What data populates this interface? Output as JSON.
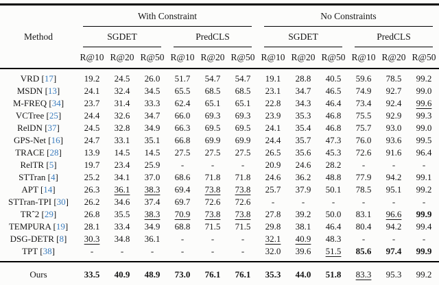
{
  "colors": {
    "citation_blue": "#3A7CBE",
    "text": "#151515",
    "background": "#FCFCFB",
    "rule": "#000000"
  },
  "table": {
    "method_header": "Method",
    "groups": [
      {
        "label": "With Constraint"
      },
      {
        "label": "No Constraints"
      }
    ],
    "subgroups": [
      "SGDET",
      "PredCLS",
      "SGDET",
      "PredCLS"
    ],
    "metric_headers": [
      "R@10",
      "R@20",
      "R@50",
      "R@10",
      "R@20",
      "R@50",
      "R@10",
      "R@20",
      "R@50",
      "R@10",
      "R@20",
      "R@50"
    ],
    "rows": [
      {
        "method": "VRD",
        "cite": "17",
        "values": [
          "19.2",
          "24.5",
          "26.0",
          "51.7",
          "54.7",
          "54.7",
          "19.1",
          "28.8",
          "40.5",
          "59.6",
          "78.5",
          "99.2"
        ],
        "styles": [
          "",
          "",
          "",
          "",
          "",
          "",
          "",
          "",
          "",
          "",
          "",
          ""
        ]
      },
      {
        "method": "MSDN",
        "cite": "13",
        "values": [
          "24.1",
          "32.4",
          "34.5",
          "65.5",
          "68.5",
          "68.5",
          "23.1",
          "34.7",
          "46.5",
          "74.9",
          "92.7",
          "99.0"
        ],
        "styles": [
          "",
          "",
          "",
          "",
          "",
          "",
          "",
          "",
          "",
          "",
          "",
          ""
        ]
      },
      {
        "method": "M-FREQ",
        "cite": "34",
        "values": [
          "23.7",
          "31.4",
          "33.3",
          "62.4",
          "65.1",
          "65.1",
          "22.8",
          "34.3",
          "46.4",
          "73.4",
          "92.4",
          "99.6"
        ],
        "styles": [
          "",
          "",
          "",
          "",
          "",
          "",
          "",
          "",
          "",
          "",
          "",
          "u"
        ]
      },
      {
        "method": "VCTree",
        "cite": "25",
        "values": [
          "24.4",
          "32.6",
          "34.7",
          "66.0",
          "69.3",
          "69.3",
          "23.9",
          "35.3",
          "46.8",
          "75.5",
          "92.9",
          "99.3"
        ],
        "styles": [
          "",
          "",
          "",
          "",
          "",
          "",
          "",
          "",
          "",
          "",
          "",
          ""
        ]
      },
      {
        "method": "RelDN",
        "cite": "37",
        "values": [
          "24.5",
          "32.8",
          "34.9",
          "66.3",
          "69.5",
          "69.5",
          "24.1",
          "35.4",
          "46.8",
          "75.7",
          "93.0",
          "99.0"
        ],
        "styles": [
          "",
          "",
          "",
          "",
          "",
          "",
          "",
          "",
          "",
          "",
          "",
          ""
        ]
      },
      {
        "method": "GPS-Net",
        "cite": "16",
        "values": [
          "24.7",
          "33.1",
          "35.1",
          "66.8",
          "69.9",
          "69.9",
          "24.4",
          "35.7",
          "47.3",
          "76.0",
          "93.6",
          "99.5"
        ],
        "styles": [
          "",
          "",
          "",
          "",
          "",
          "",
          "",
          "",
          "",
          "",
          "",
          ""
        ]
      },
      {
        "method": "TRACE",
        "cite": "28",
        "values": [
          "13.9",
          "14.5",
          "14.5",
          "27.5",
          "27.5",
          "27.5",
          "26.5",
          "35.6",
          "45.3",
          "72.6",
          "91.6",
          "96.4"
        ],
        "styles": [
          "",
          "",
          "",
          "",
          "",
          "",
          "",
          "",
          "",
          "",
          "",
          ""
        ]
      },
      {
        "method": "RelTR",
        "cite": "5",
        "values": [
          "19.7",
          "23.4",
          "25.9",
          "-",
          "-",
          "-",
          "20.9",
          "24.6",
          "28.2",
          "-",
          "-",
          "-"
        ],
        "styles": [
          "",
          "",
          "",
          "",
          "",
          "",
          "",
          "",
          "",
          "",
          "",
          ""
        ]
      },
      {
        "method": "STTran",
        "cite": "4",
        "values": [
          "25.2",
          "34.1",
          "37.0",
          "68.6",
          "71.8",
          "71.8",
          "24.6",
          "36.2",
          "48.8",
          "77.9",
          "94.2",
          "99.1"
        ],
        "styles": [
          "",
          "",
          "",
          "",
          "",
          "",
          "",
          "",
          "",
          "",
          "",
          ""
        ]
      },
      {
        "method": "APT",
        "cite": "14",
        "values": [
          "26.3",
          "36.1",
          "38.3",
          "69.4",
          "73.8",
          "73.8",
          "25.7",
          "37.9",
          "50.1",
          "78.5",
          "95.1",
          "99.2"
        ],
        "styles": [
          "",
          "u",
          "u",
          "",
          "u",
          "u",
          "",
          "",
          "",
          "",
          "",
          ""
        ]
      },
      {
        "method": "STTran-TPI",
        "cite": "30",
        "values": [
          "26.2",
          "34.6",
          "37.4",
          "69.7",
          "72.6",
          "72.6",
          "-",
          "-",
          "-",
          "-",
          "-",
          "-"
        ],
        "styles": [
          "",
          "",
          "",
          "",
          "",
          "",
          "",
          "",
          "",
          "",
          "",
          ""
        ]
      },
      {
        "method": "TRˆ2",
        "cite": "29",
        "values": [
          "26.8",
          "35.5",
          "38.3",
          "70.9",
          "73.8",
          "73.8",
          "27.8",
          "39.2",
          "50.0",
          "83.1",
          "96.6",
          "99.9"
        ],
        "styles": [
          "",
          "",
          "u",
          "u",
          "u",
          "u",
          "",
          "",
          "",
          "",
          "u",
          "b"
        ]
      },
      {
        "method": "TEMPURA",
        "cite": "19",
        "values": [
          "28.1",
          "33.4",
          "34.9",
          "68.8",
          "71.5",
          "71.5",
          "29.8",
          "38.1",
          "46.4",
          "80.4",
          "94.2",
          "99.4"
        ],
        "styles": [
          "",
          "",
          "",
          "",
          "",
          "",
          "",
          "",
          "",
          "",
          "",
          ""
        ]
      },
      {
        "method": "DSG-DETR",
        "cite": "8",
        "values": [
          "30.3",
          "34.8",
          "36.1",
          "-",
          "-",
          "-",
          "32.1",
          "40.9",
          "48.3",
          "-",
          "-",
          "-"
        ],
        "styles": [
          "u",
          "",
          "",
          "",
          "",
          "",
          "u",
          "u",
          "",
          "",
          "",
          ""
        ]
      },
      {
        "method": "TPT",
        "cite": "38",
        "values": [
          "-",
          "-",
          "-",
          "-",
          "-",
          "-",
          "32.0",
          "39.6",
          "51.5",
          "85.6",
          "97.4",
          "99.9"
        ],
        "styles": [
          "",
          "",
          "",
          "",
          "",
          "",
          "",
          "",
          "u",
          "b",
          "b",
          "b"
        ]
      }
    ],
    "ours": {
      "method": "Ours",
      "values": [
        "33.5",
        "40.9",
        "48.9",
        "73.0",
        "76.1",
        "76.1",
        "35.3",
        "44.0",
        "51.8",
        "83.3",
        "95.3",
        "99.2"
      ],
      "styles": [
        "b",
        "b",
        "b",
        "b",
        "b",
        "b",
        "b",
        "b",
        "b",
        "u",
        "",
        ""
      ]
    }
  }
}
